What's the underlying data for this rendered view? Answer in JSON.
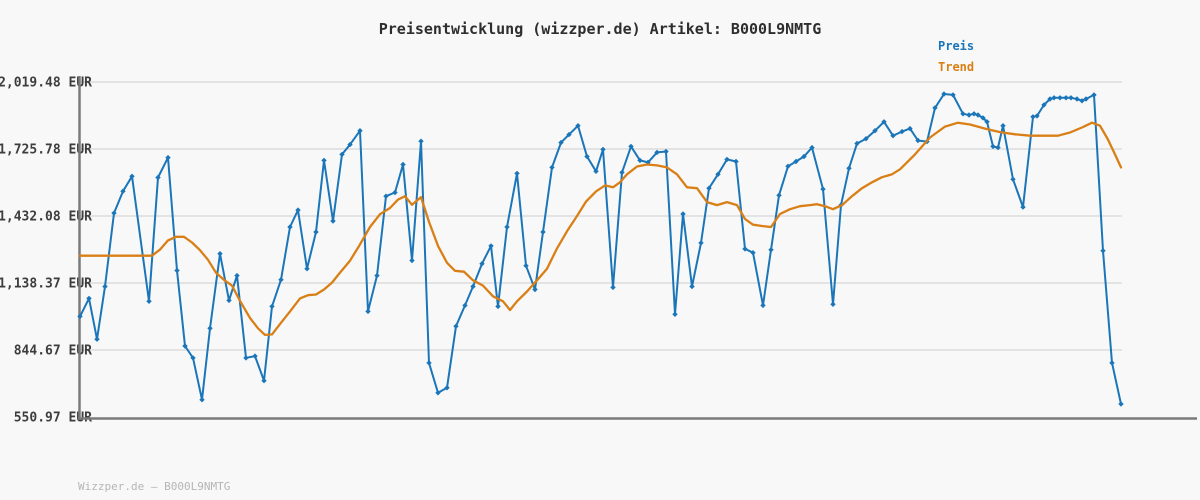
{
  "header": {
    "title": "Preisentwicklung (wizzper.de) Artikel: B000L9NMTG"
  },
  "legend": {
    "items": [
      {
        "label": "Preis",
        "color": "#1b76b9"
      },
      {
        "label": "Trend",
        "color": "#d97f16"
      }
    ]
  },
  "footer": {
    "text": "Wizzper.de — B000L9NMTG"
  },
  "colors": {
    "background": "#f8f8f8",
    "grid": "#dcdcdc",
    "axis": "#7a7a7a",
    "tick_text": "#3d3d3d",
    "title_text": "#2e2e2e",
    "footer_text": "#b5b5b5",
    "price": "#1b76b9",
    "trend": "#d97f16"
  },
  "chart_data": {
    "type": "line",
    "title": "Preisentwicklung (wizzper.de) Artikel: B000L9NMTG",
    "xlabel": "",
    "ylabel": "EUR",
    "x_axis_note": "time axis, no tick labels shown",
    "grid": true,
    "legend_position": "top-right",
    "ylim": [
      550.97,
      2019.48
    ],
    "y_ticks": [
      {
        "label": "2,019.48 EUR",
        "value": 2019.48
      },
      {
        "label": "1,725.78 EUR",
        "value": 1725.78
      },
      {
        "label": "1,432.08 EUR",
        "value": 1432.08
      },
      {
        "label": "1,138.37 EUR",
        "value": 1138.37
      },
      {
        "label": "844.67 EUR",
        "value": 844.67
      },
      {
        "label": "550.97 EUR",
        "value": 550.97
      }
    ],
    "series": [
      {
        "name": "Preis",
        "color": "#1b76b9",
        "marker": "diamond",
        "points": [
          [
            80,
            992
          ],
          [
            89,
            1071
          ],
          [
            97,
            892
          ],
          [
            105,
            1123
          ],
          [
            114,
            1445
          ],
          [
            123,
            1541
          ],
          [
            132,
            1606
          ],
          [
            149,
            1058
          ],
          [
            158,
            1601
          ],
          [
            168,
            1688
          ],
          [
            177,
            1193
          ],
          [
            185,
            862
          ],
          [
            193,
            810
          ],
          [
            202,
            627
          ],
          [
            210,
            940
          ],
          [
            220,
            1267
          ],
          [
            229,
            1062
          ],
          [
            237,
            1171
          ],
          [
            246,
            810
          ],
          [
            255,
            818
          ],
          [
            264,
            710
          ],
          [
            272,
            1036
          ],
          [
            281,
            1153
          ],
          [
            290,
            1384
          ],
          [
            298,
            1458
          ],
          [
            307,
            1201
          ],
          [
            316,
            1362
          ],
          [
            324,
            1676
          ],
          [
            333,
            1410
          ],
          [
            342,
            1702
          ],
          [
            350,
            1745
          ],
          [
            360,
            1806
          ],
          [
            368,
            1014
          ],
          [
            377,
            1171
          ],
          [
            386,
            1519
          ],
          [
            395,
            1535
          ],
          [
            403,
            1658
          ],
          [
            412,
            1237
          ],
          [
            421,
            1760
          ],
          [
            429,
            788
          ],
          [
            438,
            657
          ],
          [
            447,
            679
          ],
          [
            456,
            949
          ],
          [
            465,
            1040
          ],
          [
            473,
            1123
          ],
          [
            482,
            1223
          ],
          [
            491,
            1301
          ],
          [
            498,
            1036
          ],
          [
            507,
            1384
          ],
          [
            517,
            1619
          ],
          [
            526,
            1214
          ],
          [
            535,
            1110
          ],
          [
            543,
            1362
          ],
          [
            552,
            1645
          ],
          [
            561,
            1754
          ],
          [
            569,
            1789
          ],
          [
            578,
            1828
          ],
          [
            587,
            1693
          ],
          [
            596,
            1628
          ],
          [
            603,
            1724
          ],
          [
            613,
            1119
          ],
          [
            622,
            1623
          ],
          [
            631,
            1737
          ],
          [
            640,
            1676
          ],
          [
            648,
            1667
          ],
          [
            657,
            1711
          ],
          [
            666,
            1715
          ],
          [
            675,
            1001
          ],
          [
            683,
            1441
          ],
          [
            692,
            1123
          ],
          [
            701,
            1314
          ],
          [
            709,
            1554
          ],
          [
            718,
            1615
          ],
          [
            727,
            1680
          ],
          [
            736,
            1671
          ],
          [
            745,
            1288
          ],
          [
            753,
            1271
          ],
          [
            763,
            1040
          ],
          [
            771,
            1284
          ],
          [
            779,
            1523
          ],
          [
            788,
            1650
          ],
          [
            796,
            1671
          ],
          [
            804,
            1693
          ],
          [
            812,
            1732
          ],
          [
            823,
            1550
          ],
          [
            833,
            1045
          ],
          [
            841,
            1480
          ],
          [
            849,
            1641
          ],
          [
            857,
            1750
          ],
          [
            866,
            1771
          ],
          [
            875,
            1806
          ],
          [
            884,
            1845
          ],
          [
            893,
            1784
          ],
          [
            902,
            1802
          ],
          [
            910,
            1815
          ],
          [
            918,
            1763
          ],
          [
            927,
            1758
          ],
          [
            935,
            1906
          ],
          [
            944,
            1967
          ],
          [
            953,
            1963
          ],
          [
            963,
            1880
          ],
          [
            969,
            1875
          ],
          [
            974,
            1880
          ],
          [
            978,
            1875
          ],
          [
            983,
            1862
          ],
          [
            987,
            1845
          ],
          [
            993,
            1737
          ],
          [
            998,
            1732
          ],
          [
            1003,
            1828
          ],
          [
            1013,
            1593
          ],
          [
            1023,
            1471
          ],
          [
            1033,
            1867
          ],
          [
            1037,
            1871
          ],
          [
            1044,
            1919
          ],
          [
            1050,
            1945
          ],
          [
            1054,
            1950
          ],
          [
            1060,
            1950
          ],
          [
            1066,
            1950
          ],
          [
            1071,
            1950
          ],
          [
            1077,
            1945
          ],
          [
            1082,
            1937
          ],
          [
            1086,
            1945
          ],
          [
            1094,
            1963
          ],
          [
            1103,
            1280
          ],
          [
            1112,
            788
          ],
          [
            1121,
            608
          ]
        ]
      },
      {
        "name": "Trend",
        "color": "#d97f16",
        "marker": "none",
        "points": [
          [
            80,
            1258
          ],
          [
            95,
            1258
          ],
          [
            110,
            1258
          ],
          [
            125,
            1258
          ],
          [
            140,
            1258
          ],
          [
            152,
            1258
          ],
          [
            160,
            1285
          ],
          [
            168,
            1325
          ],
          [
            176,
            1341
          ],
          [
            184,
            1341
          ],
          [
            192,
            1316
          ],
          [
            200,
            1282
          ],
          [
            208,
            1240
          ],
          [
            216,
            1183
          ],
          [
            224,
            1152
          ],
          [
            232,
            1127
          ],
          [
            240,
            1060
          ],
          [
            250,
            985
          ],
          [
            258,
            940
          ],
          [
            265,
            911
          ],
          [
            272,
            913
          ],
          [
            280,
            958
          ],
          [
            290,
            1014
          ],
          [
            300,
            1071
          ],
          [
            308,
            1085
          ],
          [
            316,
            1088
          ],
          [
            324,
            1110
          ],
          [
            332,
            1140
          ],
          [
            340,
            1184
          ],
          [
            350,
            1236
          ],
          [
            359,
            1300
          ],
          [
            370,
            1384
          ],
          [
            380,
            1440
          ],
          [
            390,
            1467
          ],
          [
            398,
            1504
          ],
          [
            405,
            1519
          ],
          [
            412,
            1481
          ],
          [
            421,
            1515
          ],
          [
            429,
            1406
          ],
          [
            438,
            1301
          ],
          [
            447,
            1227
          ],
          [
            455,
            1192
          ],
          [
            464,
            1188
          ],
          [
            473,
            1150
          ],
          [
            483,
            1127
          ],
          [
            493,
            1080
          ],
          [
            503,
            1058
          ],
          [
            510,
            1020
          ],
          [
            517,
            1058
          ],
          [
            527,
            1101
          ],
          [
            537,
            1150
          ],
          [
            547,
            1201
          ],
          [
            557,
            1290
          ],
          [
            567,
            1365
          ],
          [
            577,
            1432
          ],
          [
            586,
            1495
          ],
          [
            596,
            1540
          ],
          [
            605,
            1566
          ],
          [
            613,
            1558
          ],
          [
            620,
            1580
          ],
          [
            627,
            1615
          ],
          [
            637,
            1649
          ],
          [
            647,
            1658
          ],
          [
            657,
            1654
          ],
          [
            667,
            1645
          ],
          [
            677,
            1615
          ],
          [
            687,
            1558
          ],
          [
            697,
            1554
          ],
          [
            707,
            1493
          ],
          [
            717,
            1480
          ],
          [
            727,
            1493
          ],
          [
            737,
            1480
          ],
          [
            745,
            1419
          ],
          [
            753,
            1394
          ],
          [
            763,
            1388
          ],
          [
            771,
            1384
          ],
          [
            780,
            1441
          ],
          [
            790,
            1462
          ],
          [
            800,
            1475
          ],
          [
            810,
            1480
          ],
          [
            817,
            1484
          ],
          [
            825,
            1475
          ],
          [
            833,
            1462
          ],
          [
            842,
            1480
          ],
          [
            852,
            1519
          ],
          [
            862,
            1554
          ],
          [
            872,
            1580
          ],
          [
            882,
            1602
          ],
          [
            892,
            1615
          ],
          [
            900,
            1637
          ],
          [
            915,
            1702
          ],
          [
            930,
            1776
          ],
          [
            945,
            1824
          ],
          [
            958,
            1841
          ],
          [
            970,
            1833
          ],
          [
            985,
            1815
          ],
          [
            1000,
            1800
          ],
          [
            1015,
            1790
          ],
          [
            1030,
            1784
          ],
          [
            1045,
            1784
          ],
          [
            1058,
            1784
          ],
          [
            1070,
            1798
          ],
          [
            1082,
            1820
          ],
          [
            1092,
            1841
          ],
          [
            1100,
            1828
          ],
          [
            1108,
            1767
          ],
          [
            1115,
            1702
          ],
          [
            1121,
            1645
          ]
        ]
      }
    ]
  }
}
